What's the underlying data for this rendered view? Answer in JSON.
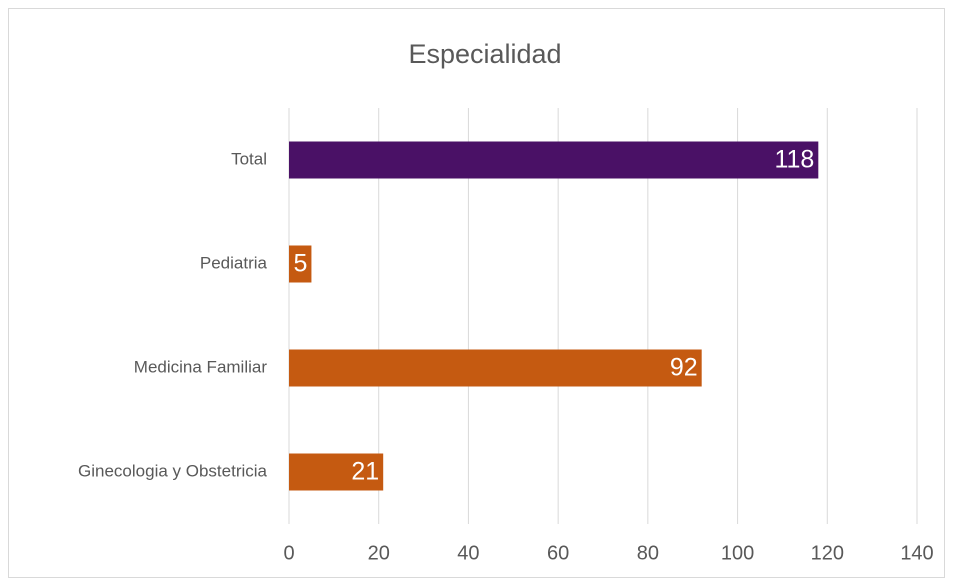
{
  "chart_data": {
    "type": "hbar",
    "title": "Especialidad",
    "categories": [
      "Total",
      "Pediatria",
      "Medicina Familiar",
      "Ginecologia y Obstetricia"
    ],
    "values": [
      118,
      5,
      92,
      21
    ],
    "colors": [
      "#4a1166",
      "#c55a11",
      "#c55a11",
      "#c55a11"
    ],
    "xlim": [
      0,
      140
    ],
    "xticks": [
      0,
      20,
      40,
      60,
      80,
      100,
      120,
      140
    ],
    "grid": true
  }
}
